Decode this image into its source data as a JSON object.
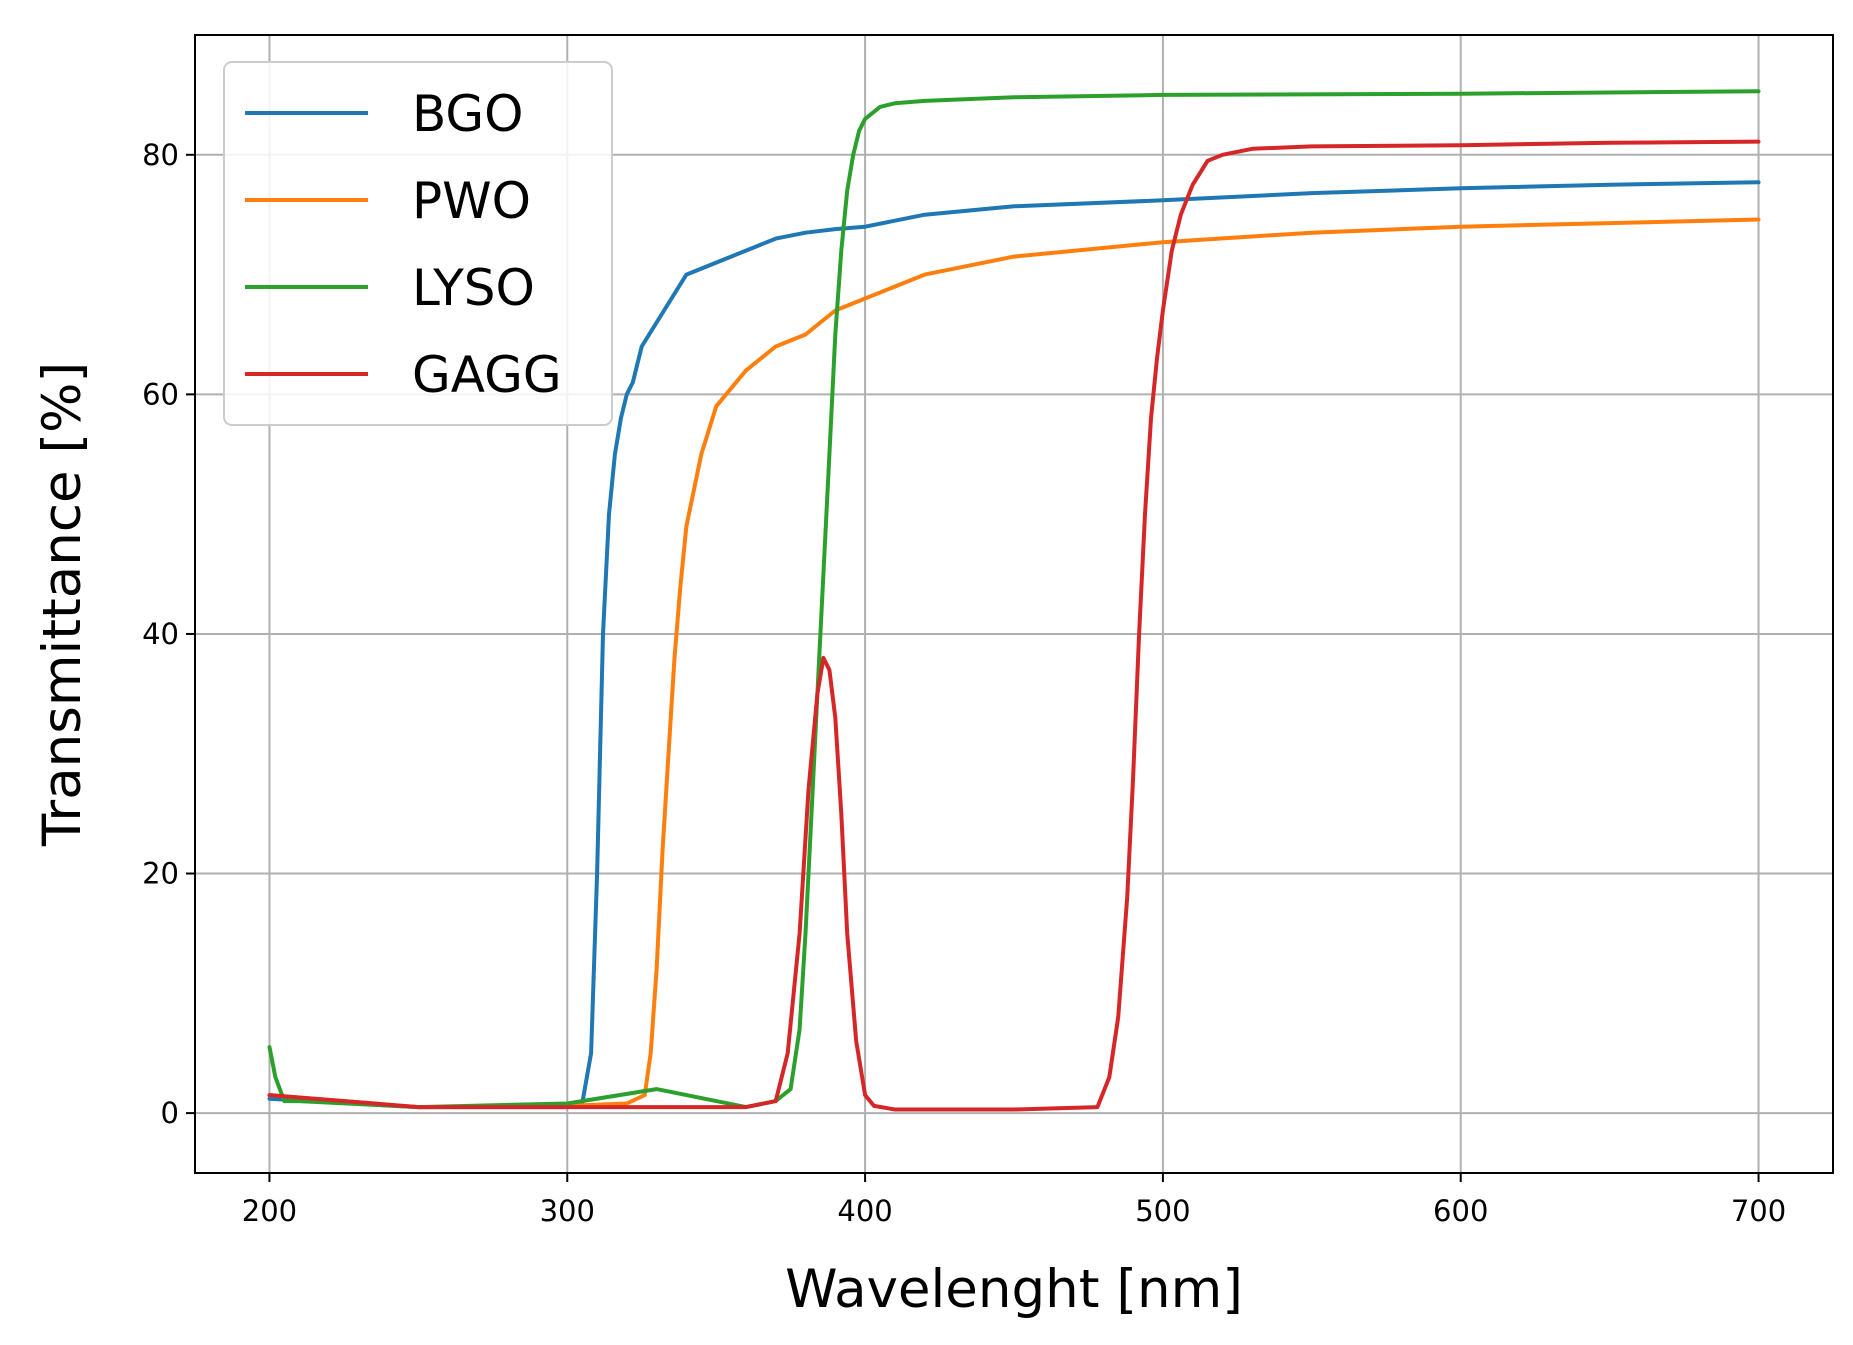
{
  "chart_data": {
    "type": "line",
    "title": "",
    "xlabel": "Wavelenght [nm]",
    "ylabel": "Transmittance [%]",
    "xlim": [
      175,
      725
    ],
    "ylim": [
      -5,
      90
    ],
    "xticks": [
      200,
      300,
      400,
      500,
      600,
      700
    ],
    "yticks": [
      0,
      20,
      40,
      60,
      80
    ],
    "grid": true,
    "legend_position": "top-left",
    "series": [
      {
        "name": "BGO",
        "color": "#1f77b4",
        "x": [
          200,
          250,
          300,
          305,
          308,
          310,
          312,
          314,
          316,
          318,
          320,
          322,
          325,
          330,
          335,
          340,
          350,
          360,
          370,
          380,
          390,
          400,
          420,
          450,
          500,
          550,
          600,
          650,
          700
        ],
        "y": [
          1.2,
          0.5,
          0.5,
          0.8,
          5,
          20,
          40,
          50,
          55,
          58,
          60,
          61,
          64,
          66,
          68,
          70,
          71,
          72,
          73,
          73.5,
          73.8,
          74,
          75,
          75.7,
          76.2,
          76.8,
          77.2,
          77.5,
          77.7
        ]
      },
      {
        "name": "PWO",
        "color": "#ff7f0e",
        "x": [
          200,
          250,
          300,
          320,
          326,
          328,
          330,
          332,
          334,
          336,
          338,
          340,
          345,
          350,
          360,
          370,
          380,
          390,
          400,
          420,
          450,
          500,
          550,
          600,
          650,
          700
        ],
        "y": [
          1.5,
          0.5,
          0.6,
          0.8,
          1.5,
          5,
          12,
          22,
          30,
          38,
          44,
          49,
          55,
          59,
          62,
          64,
          65,
          67,
          68,
          70,
          71.5,
          72.7,
          73.5,
          74,
          74.3,
          74.6
        ]
      },
      {
        "name": "LYSO",
        "color": "#2ca02c",
        "x": [
          200,
          202,
          205,
          210,
          250,
          300,
          330,
          360,
          370,
          375,
          378,
          380,
          382,
          384,
          386,
          388,
          390,
          392,
          394,
          396,
          398,
          400,
          405,
          410,
          420,
          450,
          500,
          600,
          700
        ],
        "y": [
          5.5,
          3,
          1,
          1,
          0.5,
          0.8,
          2,
          0.5,
          1,
          2,
          7,
          15,
          25,
          35,
          45,
          55,
          65,
          72,
          77,
          80,
          82,
          83,
          84,
          84.3,
          84.5,
          84.8,
          85,
          85.1,
          85.3
        ]
      },
      {
        "name": "GAGG",
        "color": "#d62728",
        "x": [
          200,
          250,
          300,
          360,
          370,
          374,
          378,
          381,
          384,
          386,
          388,
          390,
          392,
          394,
          397,
          400,
          403,
          410,
          450,
          478,
          482,
          485,
          488,
          490,
          492,
          494,
          496,
          498,
          500,
          503,
          506,
          510,
          515,
          520,
          530,
          550,
          600,
          650,
          700
        ],
        "y": [
          1.5,
          0.5,
          0.5,
          0.5,
          1,
          5,
          15,
          27,
          35,
          38,
          37,
          33,
          25,
          15,
          6,
          1.5,
          0.6,
          0.3,
          0.3,
          0.5,
          3,
          8,
          18,
          28,
          40,
          50,
          58,
          63,
          67,
          72,
          75,
          77.5,
          79.5,
          80,
          80.5,
          80.7,
          80.8,
          81,
          81.1
        ]
      }
    ]
  }
}
